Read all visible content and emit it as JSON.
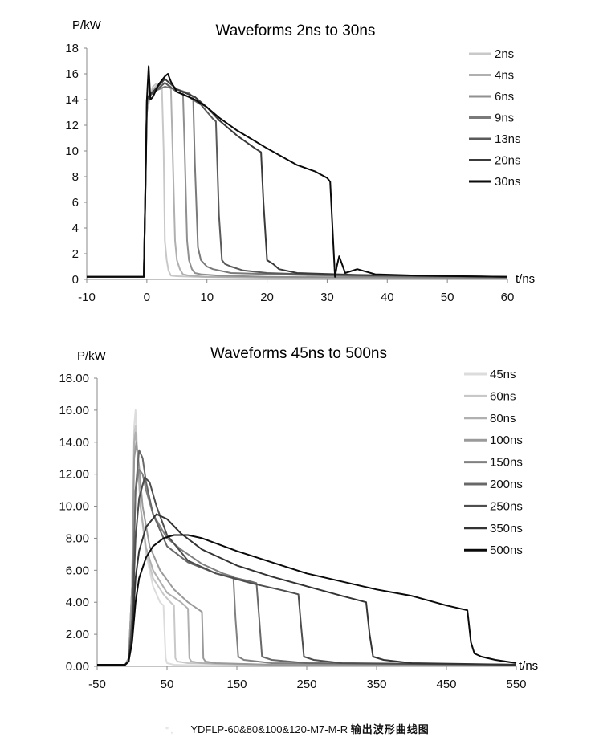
{
  "caption": {
    "model": "YDFLP-60&80&100&120-M7-M-R",
    "text_cn": "输出波形曲线图",
    "deco": "\" ,"
  },
  "chart_data": [
    {
      "type": "line",
      "title": "Waveforms 2ns to 30ns",
      "xlabel": "t/ns",
      "ylabel": "P/kW",
      "xlim": [
        -10,
        60
      ],
      "ylim": [
        0,
        18
      ],
      "xticks": [
        "-10",
        "0",
        "10",
        "20",
        "30",
        "40",
        "50",
        "60"
      ],
      "yticks": [
        "0",
        "2",
        "4",
        "6",
        "8",
        "10",
        "12",
        "14",
        "16",
        "18"
      ],
      "legend_position": "top-right",
      "grid": false,
      "series": [
        {
          "name": "2ns",
          "color": "#c8c8c8",
          "x": [
            -10,
            -0.5,
            0,
            0.5,
            1,
            1.5,
            2.5,
            2.8,
            3,
            3.3,
            3.6,
            4,
            5,
            8,
            15,
            25,
            40,
            60
          ],
          "y": [
            0.2,
            0.2,
            13,
            14.2,
            15,
            15.2,
            15,
            10,
            3,
            1.5,
            0.7,
            0.3,
            0.25,
            0.2,
            0.15,
            0.1,
            0.1,
            0.1
          ]
        },
        {
          "name": "4ns",
          "color": "#b0b0b0",
          "x": [
            -10,
            -0.5,
            0,
            0.5,
            1,
            2,
            3,
            4,
            4.3,
            4.7,
            5,
            5.5,
            6,
            7,
            10,
            20,
            35,
            60
          ],
          "y": [
            0.2,
            0.2,
            13,
            14.2,
            14.8,
            15.2,
            15.3,
            15,
            10,
            3,
            1.5,
            0.8,
            0.4,
            0.3,
            0.2,
            0.15,
            0.1,
            0.1
          ]
        },
        {
          "name": "6ns",
          "color": "#909090",
          "x": [
            -10,
            -0.5,
            0,
            0.5,
            1,
            3,
            5,
            6,
            6.3,
            6.7,
            7,
            7.5,
            8,
            9,
            12,
            20,
            40,
            60
          ],
          "y": [
            0.2,
            0.2,
            13.5,
            14.3,
            14.6,
            15,
            14.8,
            14.6,
            10,
            3,
            1.5,
            0.8,
            0.5,
            0.4,
            0.3,
            0.2,
            0.15,
            0.1
          ]
        },
        {
          "name": "9ns",
          "color": "#7a7a7a",
          "x": [
            -10,
            -0.5,
            0,
            0.5,
            1,
            3,
            5,
            7,
            7.7,
            8,
            8.5,
            9,
            10,
            11,
            14,
            25,
            45,
            60
          ],
          "y": [
            0.2,
            0.2,
            13.8,
            14.5,
            14.6,
            15,
            14.8,
            14.5,
            14.2,
            9,
            2.5,
            1.5,
            1,
            0.8,
            0.5,
            0.35,
            0.2,
            0.15
          ]
        },
        {
          "name": "13ns",
          "color": "#5a5a5a",
          "x": [
            -10,
            -0.5,
            0,
            0.5,
            1,
            3,
            5,
            7,
            9,
            11,
            11.5,
            12,
            12.5,
            13,
            14,
            16,
            20,
            30,
            60
          ],
          "y": [
            0.2,
            0.2,
            14,
            14.3,
            14.5,
            15.3,
            14.6,
            14.2,
            13.6,
            12.5,
            12.3,
            5,
            1.5,
            1.2,
            1,
            0.7,
            0.5,
            0.35,
            0.2
          ]
        },
        {
          "name": "20ns",
          "color": "#3a3a3a",
          "x": [
            -10,
            -0.5,
            0,
            0.5,
            1,
            3,
            5,
            8,
            10,
            12,
            15,
            18,
            19,
            19.4,
            20,
            21,
            22,
            25,
            35,
            60
          ],
          "y": [
            0.2,
            0.2,
            14,
            14.4,
            14.6,
            15.6,
            14.8,
            14.2,
            13.4,
            12.4,
            11.2,
            10.2,
            9.9,
            6,
            1.5,
            1.2,
            0.8,
            0.5,
            0.35,
            0.2
          ]
        },
        {
          "name": "30ns",
          "color": "#0a0a0a",
          "x": [
            -10,
            -0.5,
            -0.2,
            0,
            0.3,
            0.6,
            1,
            2,
            3,
            3.5,
            4,
            5,
            6,
            8,
            10,
            12,
            15,
            20,
            25,
            28,
            30,
            30.5,
            31,
            31.3,
            31.6,
            32,
            33,
            35,
            38,
            45,
            60
          ],
          "y": [
            0.2,
            0.2,
            8,
            14,
            16.6,
            14,
            14.2,
            15.2,
            15.8,
            16,
            15.4,
            14.6,
            14.4,
            14,
            13.4,
            12.6,
            11.6,
            10.2,
            8.9,
            8.4,
            7.9,
            7.6,
            3,
            0.2,
            1,
            1.8,
            0.5,
            0.8,
            0.4,
            0.3,
            0.2
          ]
        }
      ]
    },
    {
      "type": "line",
      "title": "Waveforms 45ns to 500ns",
      "xlabel": "t/ns",
      "ylabel": "P/kW",
      "xlim": [
        -50,
        550
      ],
      "ylim": [
        0,
        18
      ],
      "xticks": [
        "-50",
        "50",
        "150",
        "250",
        "350",
        "450",
        "550"
      ],
      "yticks": [
        "0.00",
        "2.00",
        "4.00",
        "6.00",
        "8.00",
        "10.00",
        "12.00",
        "14.00",
        "16.00",
        "18.00"
      ],
      "legend_position": "top-right",
      "grid": false,
      "series": [
        {
          "name": "45ns",
          "color": "#dcdcdc",
          "x": [
            -50,
            -10,
            -5,
            0,
            3,
            5,
            8,
            12,
            20,
            30,
            40,
            45,
            48,
            50,
            60,
            100,
            550
          ],
          "y": [
            0.1,
            0.1,
            0.5,
            5,
            15,
            16,
            13,
            10,
            7,
            5,
            4,
            3.8,
            0.5,
            0.2,
            0.1,
            0.05,
            0.05
          ]
        },
        {
          "name": "60ns",
          "color": "#c8c8c8",
          "x": [
            -50,
            -10,
            -5,
            0,
            3,
            5,
            8,
            12,
            20,
            30,
            45,
            55,
            60,
            62,
            65,
            80,
            150,
            550
          ],
          "y": [
            0.1,
            0.1,
            0.5,
            5,
            14.5,
            15,
            13,
            10,
            7.2,
            5.5,
            4.5,
            4,
            3.8,
            0.5,
            0.3,
            0.2,
            0.1,
            0.05
          ]
        },
        {
          "name": "80ns",
          "color": "#b0b0b0",
          "x": [
            -50,
            -10,
            -5,
            0,
            3,
            5,
            8,
            12,
            20,
            30,
            50,
            70,
            80,
            82,
            85,
            100,
            200,
            550
          ],
          "y": [
            0.1,
            0.1,
            0.5,
            5,
            14,
            14.6,
            13,
            10,
            7.4,
            6,
            4.6,
            4,
            3.6,
            0.5,
            0.3,
            0.2,
            0.1,
            0.05
          ]
        },
        {
          "name": "100ns",
          "color": "#9a9a9a",
          "x": [
            -50,
            -10,
            -5,
            0,
            3,
            6,
            10,
            15,
            25,
            40,
            60,
            80,
            100,
            102,
            105,
            120,
            200,
            550
          ],
          "y": [
            0.1,
            0.1,
            0.5,
            5,
            13,
            14,
            12.5,
            10,
            7.5,
            6,
            4.8,
            4,
            3.4,
            0.5,
            0.3,
            0.2,
            0.1,
            0.05
          ]
        },
        {
          "name": "150ns",
          "color": "#808080",
          "x": [
            -50,
            -10,
            -5,
            0,
            5,
            10,
            15,
            20,
            30,
            50,
            70,
            100,
            130,
            145,
            148,
            152,
            160,
            200,
            550
          ],
          "y": [
            0.1,
            0.1,
            0.3,
            3,
            11,
            12.3,
            12,
            11,
            9.5,
            8,
            7.3,
            6.4,
            5.8,
            5.6,
            3,
            0.6,
            0.4,
            0.2,
            0.1
          ]
        },
        {
          "name": "200ns",
          "color": "#686868",
          "x": [
            -50,
            -10,
            -5,
            0,
            5,
            10,
            15,
            20,
            30,
            50,
            80,
            120,
            170,
            178,
            182,
            186,
            200,
            250,
            550
          ],
          "y": [
            0.1,
            0.1,
            0.3,
            3,
            11,
            13.5,
            13,
            11.5,
            9.5,
            7.5,
            6.5,
            5.8,
            5.3,
            5.2,
            3,
            0.6,
            0.4,
            0.2,
            0.1
          ]
        },
        {
          "name": "250ns",
          "color": "#4e4e4e",
          "x": [
            -50,
            -10,
            -5,
            0,
            5,
            10,
            18,
            25,
            35,
            50,
            80,
            120,
            170,
            220,
            238,
            242,
            246,
            260,
            300,
            550
          ],
          "y": [
            0.1,
            0.1,
            0.3,
            2.5,
            8,
            10.5,
            11.8,
            11.5,
            10,
            8.2,
            6.6,
            5.8,
            5.2,
            4.7,
            4.5,
            2.5,
            0.6,
            0.4,
            0.2,
            0.1
          ]
        },
        {
          "name": "350ns",
          "color": "#333333",
          "x": [
            -50,
            -10,
            -5,
            0,
            5,
            10,
            20,
            35,
            50,
            70,
            100,
            150,
            200,
            250,
            300,
            335,
            340,
            345,
            360,
            400,
            550
          ],
          "y": [
            0.1,
            0.1,
            0.3,
            2,
            5.5,
            7.2,
            8.7,
            9.5,
            9.2,
            8.3,
            7.3,
            6.3,
            5.6,
            5,
            4.4,
            4,
            2,
            0.6,
            0.4,
            0.2,
            0.1
          ]
        },
        {
          "name": "500ns",
          "color": "#0a0a0a",
          "x": [
            -50,
            -10,
            -5,
            0,
            5,
            10,
            20,
            30,
            45,
            60,
            80,
            100,
            150,
            200,
            250,
            300,
            350,
            400,
            450,
            480,
            485,
            490,
            500,
            520,
            550
          ],
          "y": [
            0.1,
            0.1,
            0.3,
            1.5,
            4,
            5.5,
            6.8,
            7.5,
            8,
            8.2,
            8.2,
            8,
            7.2,
            6.5,
            5.8,
            5.3,
            4.8,
            4.4,
            3.8,
            3.5,
            1.5,
            0.8,
            0.6,
            0.4,
            0.2
          ]
        }
      ]
    }
  ]
}
